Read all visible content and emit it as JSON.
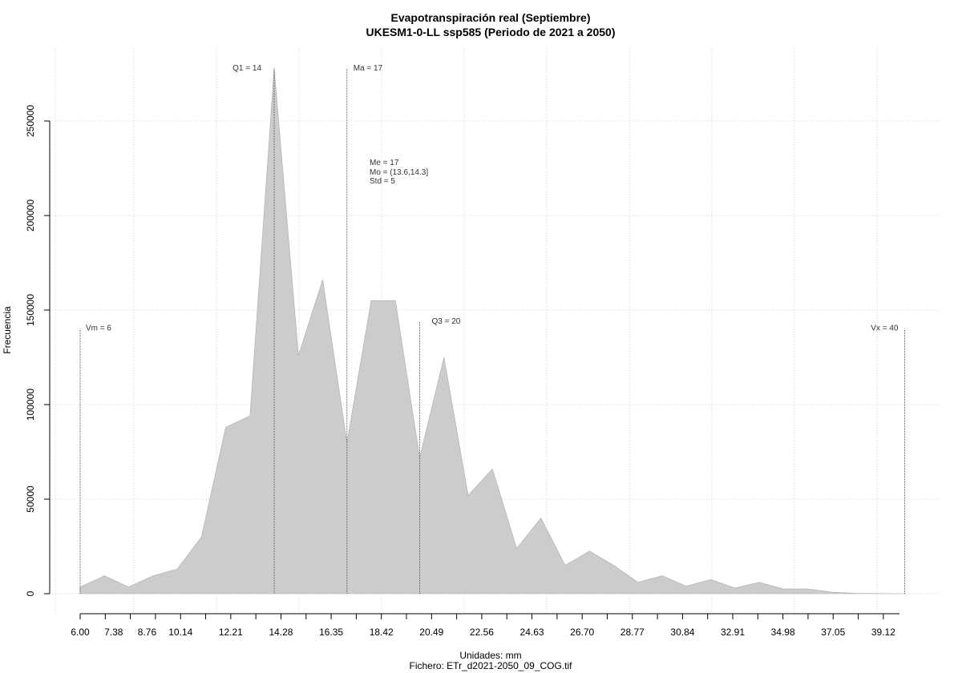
{
  "chart_data": {
    "type": "area",
    "title": "Evapotranspiración real (Septiembre)",
    "subtitle": "UKESM1-0-LL ssp585 (Periodo de 2021 a 2050)",
    "xlabel": "Unidades: mm",
    "ylabel": "Frecuencia",
    "footer": "Fichero: ETr_d2021-2050_09_COG.tif",
    "xlim": [
      6.0,
      40.5
    ],
    "ylim": [
      0,
      280000
    ],
    "grid": true,
    "x_ticks": [
      6.0,
      7.38,
      8.76,
      10.14,
      12.21,
      14.28,
      16.35,
      18.42,
      20.49,
      22.56,
      24.63,
      26.7,
      28.77,
      30.84,
      32.91,
      34.98,
      37.05,
      39.12
    ],
    "x_tick_labels": [
      "6.00",
      "7.38",
      "8.76",
      "10.14",
      "12.21",
      "14.28",
      "16.35",
      "18.42",
      "20.49",
      "22.56",
      "24.63",
      "26.70",
      "28.77",
      "30.84",
      "32.91",
      "34.98",
      "37.05",
      "39.12"
    ],
    "y_ticks": [
      0,
      50000,
      100000,
      150000,
      200000,
      250000
    ],
    "y_tick_labels": [
      "0",
      "50000",
      "100000",
      "150000",
      "200000",
      "250000"
    ],
    "series": [
      {
        "x": [
          6.0,
          7.0,
          8.0,
          9.0,
          10.0,
          11.0,
          12.0,
          13.0,
          14.0,
          15.0,
          16.0,
          17.0,
          18.0,
          19.0,
          20.0,
          21.0,
          22.0,
          23.0,
          24.0,
          25.0,
          26.0,
          27.0,
          28.0,
          29.0,
          30.0,
          31.0,
          32.0,
          33.0,
          34.0,
          35.0,
          36.0,
          37.0,
          38.0,
          39.0,
          40.0
        ],
        "values": [
          3500,
          9500,
          3500,
          9500,
          13000,
          30000,
          88000,
          94000,
          278000,
          126000,
          166000,
          80000,
          155000,
          155000,
          72000,
          125000,
          52000,
          66000,
          24000,
          40000,
          15000,
          22500,
          15000,
          6000,
          9500,
          4000,
          7500,
          3000,
          6000,
          2500,
          2500,
          800,
          200,
          100,
          0
        ]
      }
    ],
    "markers": [
      {
        "label": "Vm = 6",
        "x": 6.0,
        "top": 140000
      },
      {
        "label": "Q1 = 14",
        "x": 14.0,
        "top": 278000
      },
      {
        "label": "Ma = 17",
        "x": 17.0,
        "top": 278000
      },
      {
        "label": "Q3 = 20",
        "x": 20.0,
        "top": 144000
      },
      {
        "label": "Vx = 40",
        "x": 40.0,
        "top": 140000
      }
    ],
    "stats": [
      "Me = 17",
      "Mo = (13.6,14.3]",
      "Std = 5"
    ]
  }
}
